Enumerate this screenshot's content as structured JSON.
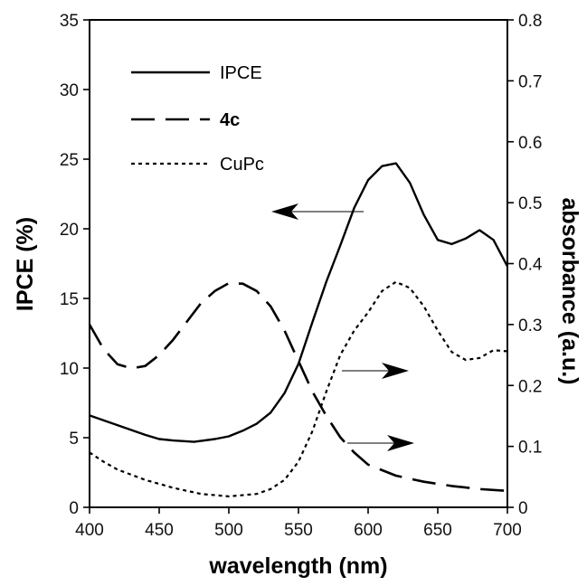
{
  "chart_data": {
    "type": "line",
    "x_axis": {
      "label": "wavelength (nm)",
      "range": [
        400,
        700
      ],
      "ticks": [
        400,
        450,
        500,
        550,
        600,
        650,
        700
      ]
    },
    "y_axis_left": {
      "label": "IPCE (%)",
      "range": [
        0,
        35
      ],
      "ticks": [
        0,
        5,
        10,
        15,
        20,
        25,
        30,
        35
      ]
    },
    "y_axis_right": {
      "label": "absorbance (a.u.)",
      "range": [
        0,
        0.8
      ],
      "ticks": [
        "0",
        "0.1",
        "0.2",
        "0.3",
        "0.4",
        "0.5",
        "0.6",
        "0.7",
        "0.8"
      ]
    },
    "grid": false,
    "legend_position": "top-left",
    "series": [
      {
        "name": "IPCE",
        "axis": "left",
        "style": "solid",
        "points": [
          [
            400,
            6.6
          ],
          [
            420,
            5.9
          ],
          [
            440,
            5.2
          ],
          [
            450,
            4.9
          ],
          [
            460,
            4.8
          ],
          [
            475,
            4.7
          ],
          [
            490,
            4.9
          ],
          [
            500,
            5.1
          ],
          [
            510,
            5.5
          ],
          [
            520,
            6.0
          ],
          [
            530,
            6.8
          ],
          [
            540,
            8.2
          ],
          [
            550,
            10.3
          ],
          [
            560,
            13.3
          ],
          [
            570,
            16.2
          ],
          [
            580,
            18.8
          ],
          [
            590,
            21.5
          ],
          [
            600,
            23.5
          ],
          [
            610,
            24.5
          ],
          [
            620,
            24.7
          ],
          [
            630,
            23.3
          ],
          [
            640,
            21.0
          ],
          [
            650,
            19.2
          ],
          [
            660,
            18.9
          ],
          [
            670,
            19.3
          ],
          [
            680,
            19.9
          ],
          [
            690,
            19.2
          ],
          [
            700,
            17.3
          ]
        ]
      },
      {
        "name": "4c",
        "axis": "right",
        "style": "dashed",
        "points": [
          [
            400,
            0.3
          ],
          [
            410,
            0.26
          ],
          [
            420,
            0.235
          ],
          [
            430,
            0.228
          ],
          [
            440,
            0.232
          ],
          [
            450,
            0.25
          ],
          [
            460,
            0.275
          ],
          [
            470,
            0.305
          ],
          [
            480,
            0.335
          ],
          [
            490,
            0.355
          ],
          [
            500,
            0.368
          ],
          [
            510,
            0.367
          ],
          [
            520,
            0.355
          ],
          [
            530,
            0.33
          ],
          [
            540,
            0.29
          ],
          [
            550,
            0.24
          ],
          [
            560,
            0.19
          ],
          [
            570,
            0.15
          ],
          [
            580,
            0.115
          ],
          [
            590,
            0.09
          ],
          [
            600,
            0.07
          ],
          [
            620,
            0.052
          ],
          [
            640,
            0.042
          ],
          [
            660,
            0.035
          ],
          [
            680,
            0.03
          ],
          [
            700,
            0.027
          ]
        ]
      },
      {
        "name": "CuPc",
        "axis": "right",
        "style": "dotted",
        "points": [
          [
            400,
            0.09
          ],
          [
            410,
            0.075
          ],
          [
            420,
            0.062
          ],
          [
            440,
            0.045
          ],
          [
            460,
            0.032
          ],
          [
            480,
            0.022
          ],
          [
            500,
            0.018
          ],
          [
            520,
            0.022
          ],
          [
            530,
            0.03
          ],
          [
            540,
            0.045
          ],
          [
            550,
            0.075
          ],
          [
            560,
            0.125
          ],
          [
            570,
            0.19
          ],
          [
            580,
            0.25
          ],
          [
            590,
            0.29
          ],
          [
            600,
            0.32
          ],
          [
            610,
            0.355
          ],
          [
            620,
            0.37
          ],
          [
            630,
            0.36
          ],
          [
            640,
            0.33
          ],
          [
            650,
            0.29
          ],
          [
            660,
            0.255
          ],
          [
            670,
            0.242
          ],
          [
            680,
            0.245
          ],
          [
            690,
            0.258
          ],
          [
            700,
            0.256
          ]
        ]
      }
    ]
  }
}
